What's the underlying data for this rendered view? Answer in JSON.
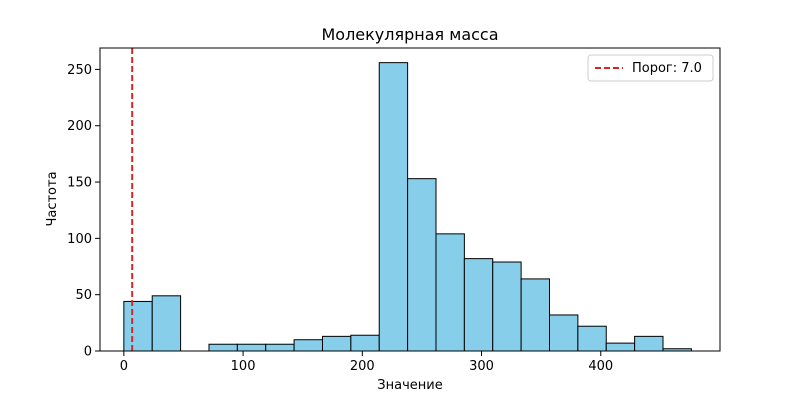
{
  "chart_data": {
    "type": "bar",
    "title": "Молекулярная масса",
    "xlabel": "Значение",
    "ylabel": "Частота",
    "bin_edges": [
      0,
      23.8,
      47.6,
      71.4,
      95.2,
      119.0,
      142.8,
      166.6,
      190.4,
      214.2,
      238.0,
      261.8,
      285.6,
      309.4,
      333.2,
      357.0,
      380.8,
      404.6,
      428.4,
      452.2,
      476.0
    ],
    "values": [
      44,
      49,
      0,
      6,
      6,
      6,
      10,
      13,
      14,
      256,
      153,
      104,
      82,
      79,
      64,
      32,
      22,
      7,
      13,
      2
    ],
    "xlim": [
      -20,
      500
    ],
    "ylim": [
      0,
      269
    ],
    "x_ticks": [
      0,
      100,
      200,
      300,
      400
    ],
    "y_ticks": [
      0,
      50,
      100,
      150,
      200,
      250
    ],
    "bar_color": "#87ceeb",
    "bar_edge_color": "#000000",
    "threshold": {
      "value": 7.0,
      "label": "Порог: 7.0",
      "color": "#d62728",
      "style": "dashed"
    },
    "legend": {
      "position": "top-right",
      "entries": [
        "Порог: 7.0"
      ]
    },
    "grid": false
  }
}
